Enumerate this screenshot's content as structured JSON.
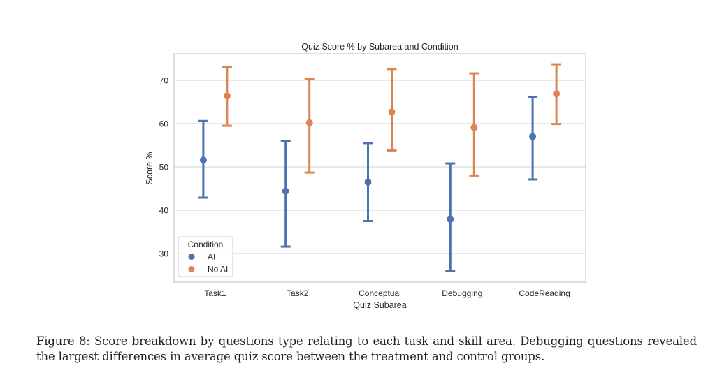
{
  "chart_data": {
    "type": "pointplot",
    "title": "Quiz Score % by Subarea and Condition",
    "xlabel": "Quiz Subarea",
    "ylabel": "Score %",
    "ylim": [
      23.5,
      76
    ],
    "yticks": [
      30,
      40,
      50,
      60,
      70
    ],
    "grid": true,
    "categories": [
      "Task1",
      "Task2",
      "Conceptual",
      "Debugging",
      "CodeReading"
    ],
    "legend": {
      "title": "Condition",
      "placement": "lower-left",
      "entries": [
        "AI",
        "No AI"
      ]
    },
    "series": [
      {
        "name": "AI",
        "color": "#4C72B0",
        "values": [
          51.6,
          44.4,
          46.5,
          37.9,
          57.0
        ],
        "ci_low": [
          42.9,
          31.6,
          37.5,
          25.9,
          47.1
        ],
        "ci_high": [
          60.6,
          55.9,
          55.5,
          50.8,
          66.2
        ]
      },
      {
        "name": "No AI",
        "color": "#DD8452",
        "values": [
          66.4,
          60.2,
          62.7,
          59.1,
          66.9
        ],
        "ci_low": [
          59.5,
          48.7,
          53.8,
          48.0,
          59.9
        ],
        "ci_high": [
          73.1,
          70.4,
          72.6,
          71.6,
          73.7
        ]
      }
    ]
  },
  "caption": "Figure 8: Score breakdown by questions type relating to each task and skill area. Debugging questions revealed the largest differences in average quiz score between the treatment and control groups."
}
